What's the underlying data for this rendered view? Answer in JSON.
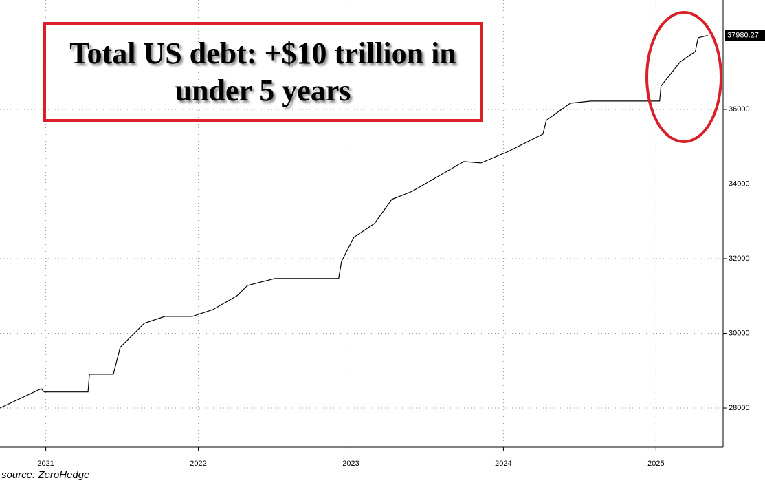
{
  "chart_data": {
    "type": "line",
    "title": "Total US debt: +$10 trillion in under 5 years",
    "source": "source: ZeroHedge",
    "x": [
      2021.2,
      2021.47,
      2021.49,
      2021.777,
      2021.786,
      2021.943,
      2021.988,
      2022.146,
      2022.281,
      2022.461,
      2022.596,
      2022.754,
      2022.822,
      2023.002,
      2023.42,
      2023.439,
      2023.52,
      2023.655,
      2023.768,
      2023.903,
      2024.083,
      2024.24,
      2024.353,
      2024.533,
      2024.759,
      2024.781,
      2024.939,
      2025.074,
      2025.524,
      2025.533,
      2025.659,
      2025.758,
      2025.776,
      2025.839
    ],
    "values": [
      28000,
      28517,
      28430,
      28430,
      28905,
      28905,
      29624,
      30270,
      30453,
      30453,
      30637,
      31006,
      31282,
      31467,
      31467,
      31928,
      32573,
      32941,
      33586,
      33807,
      34231,
      34600,
      34563,
      34876,
      35337,
      35706,
      36166,
      36222,
      36222,
      36627,
      37272,
      37549,
      37917,
      37980.27
    ],
    "color": "#000000",
    "xlim": [
      2021.2,
      2025.94
    ],
    "xticks": [
      {
        "value": 2021.5,
        "label": "2021"
      },
      {
        "value": 2022.5,
        "label": "2022"
      },
      {
        "value": 2023.5,
        "label": "2023"
      },
      {
        "value": 2024.5,
        "label": "2024"
      },
      {
        "value": 2025.5,
        "label": "2025"
      }
    ],
    "ylim": [
      26950,
      38930
    ],
    "yticks": [
      28000,
      30000,
      32000,
      34000,
      36000
    ],
    "grid": true
  }
}
